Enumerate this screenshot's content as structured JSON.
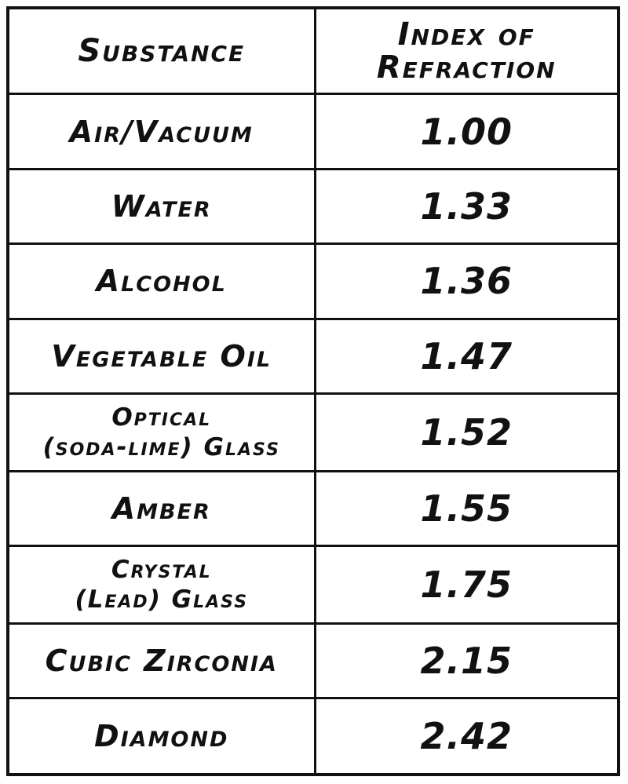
{
  "table": {
    "headers": {
      "substance": "Substance",
      "index_line1": "Index of",
      "index_line2": "Refraction"
    },
    "rows": [
      {
        "substance": [
          "Air/Vacuum"
        ],
        "index": "1.00"
      },
      {
        "substance": [
          "Water"
        ],
        "index": "1.33"
      },
      {
        "substance": [
          "Alcohol"
        ],
        "index": "1.36"
      },
      {
        "substance": [
          "Vegetable Oil"
        ],
        "index": "1.47"
      },
      {
        "substance": [
          "Optical",
          "(soda-lime) Glass"
        ],
        "index": "1.52"
      },
      {
        "substance": [
          "Amber"
        ],
        "index": "1.55"
      },
      {
        "substance": [
          "Crystal",
          "(Lead) Glass"
        ],
        "index": "1.75"
      },
      {
        "substance": [
          "Cubic Zirconia"
        ],
        "index": "2.15"
      },
      {
        "substance": [
          "Diamond"
        ],
        "index": "2.42"
      }
    ]
  }
}
